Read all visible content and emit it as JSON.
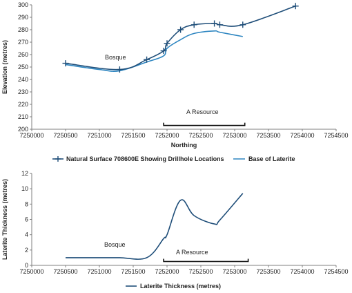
{
  "chart_data": [
    {
      "type": "line",
      "xlabel": "Northing",
      "ylabel": "Elevation (metres)",
      "xlim": [
        7250000,
        7254500
      ],
      "ylim": [
        200,
        300
      ],
      "xticks": [
        7250000,
        7250500,
        7251000,
        7251500,
        7252000,
        7252500,
        7253000,
        7253500,
        7254000,
        7254500
      ],
      "yticks": [
        200,
        210,
        220,
        230,
        240,
        250,
        260,
        270,
        280,
        290,
        300
      ],
      "grid": false,
      "legend_position": "bottom",
      "series": [
        {
          "name": "Natural Surface 708600E Showing Drillhole Locations",
          "color": "#1f4e79",
          "marker": "plus",
          "x": [
            7250500,
            7251300,
            7251700,
            7251950,
            7252000,
            7252200,
            7252400,
            7252700,
            7252780,
            7253120,
            7253900
          ],
          "y": [
            253,
            248,
            256,
            263,
            269,
            280,
            284,
            285,
            284,
            284,
            299
          ],
          "markers": [
            true,
            true,
            true,
            true,
            true,
            true,
            true,
            true,
            true,
            true,
            true
          ]
        },
        {
          "name": "Base of Laterite",
          "color": "#2e86c1",
          "marker": "none",
          "x": [
            7250500,
            7251000,
            7251300,
            7251700,
            7251950,
            7252000,
            7252200,
            7252400,
            7252700,
            7252780,
            7253120
          ],
          "y": [
            252,
            248,
            247,
            254,
            259,
            265,
            272,
            277,
            279,
            278,
            274.5
          ],
          "markers": []
        }
      ],
      "annotations": [
        {
          "text": "Bosque",
          "x": 7251050,
          "y": 257
        },
        {
          "text": "A Resource",
          "x": 7252550,
          "y": 212
        }
      ],
      "bracket": {
        "x0": 7251950,
        "x1": 7253150,
        "y": 203
      }
    },
    {
      "type": "line",
      "xlabel": "",
      "ylabel": "Laterite Thickness (metres)",
      "xlim": [
        7250000,
        7254500
      ],
      "ylim": [
        0,
        12
      ],
      "xticks": [
        7250000,
        7250500,
        7251000,
        7251500,
        7252000,
        7252500,
        7253000,
        7253500,
        7254000,
        7254500
      ],
      "yticks": [
        0,
        2,
        4,
        6,
        8,
        10,
        12
      ],
      "grid": false,
      "legend_position": "bottom",
      "series": [
        {
          "name": "Laterite Thickness (metres)",
          "color": "#1f4e79",
          "marker": "none",
          "x": [
            7250500,
            7251000,
            7251300,
            7251700,
            7251950,
            7252000,
            7252200,
            7252400,
            7252700,
            7252780,
            7253120
          ],
          "y": [
            1,
            1,
            1,
            1,
            3.5,
            4,
            8.5,
            6.5,
            5.4,
            5.9,
            9.4
          ],
          "markers": []
        }
      ],
      "annotations": [
        {
          "text": "Bosque",
          "x": 7251250,
          "y": 2.6
        },
        {
          "text": "A Resource",
          "x": 7252550,
          "y": 1.4
        }
      ],
      "bracket": {
        "x0": 7251950,
        "x1": 7253200,
        "y": 0.5
      }
    }
  ]
}
